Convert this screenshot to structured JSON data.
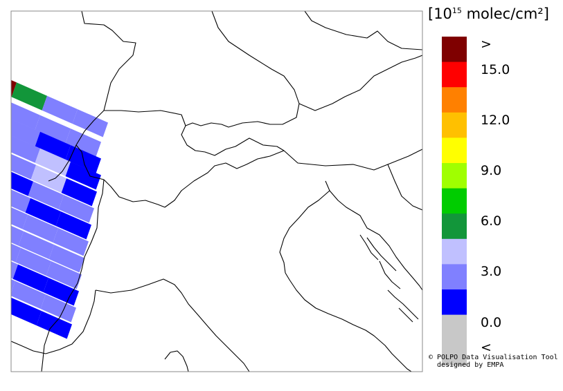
{
  "map": {
    "border_color": "#000000",
    "pixel_colors": {
      "dark_red": "#7f0000",
      "green": "#12963a",
      "light_blue": "#c0c0ff",
      "mid_blue": "#8080ff",
      "blue": "#0000ff"
    }
  },
  "colorbar": {
    "unit": "[10",
    "unit_exp": "15",
    "unit_rest": " molec/cm²]",
    "bins": [
      {
        "color": "#7f0000",
        "label": ">"
      },
      {
        "color": "#ff0000",
        "label": "15.0"
      },
      {
        "color": "#ff8000",
        "label": ""
      },
      {
        "color": "#ffc000",
        "label": "12.0"
      },
      {
        "color": "#ffff00",
        "label": ""
      },
      {
        "color": "#a0ff00",
        "label": "9.0"
      },
      {
        "color": "#00cc00",
        "label": ""
      },
      {
        "color": "#12963a",
        "label": "6.0"
      },
      {
        "color": "#c0c0ff",
        "label": ""
      },
      {
        "color": "#8080ff",
        "label": "3.0"
      },
      {
        "color": "#0000ff",
        "label": ""
      },
      {
        "color": "#c8c8c8",
        "label": "0.0"
      },
      {
        "color": "#c8c8c8",
        "label": "<"
      }
    ]
  },
  "credit": {
    "line1": "© POLPO Data Visualisation Tool",
    "line2": "  designed by EMPA"
  }
}
